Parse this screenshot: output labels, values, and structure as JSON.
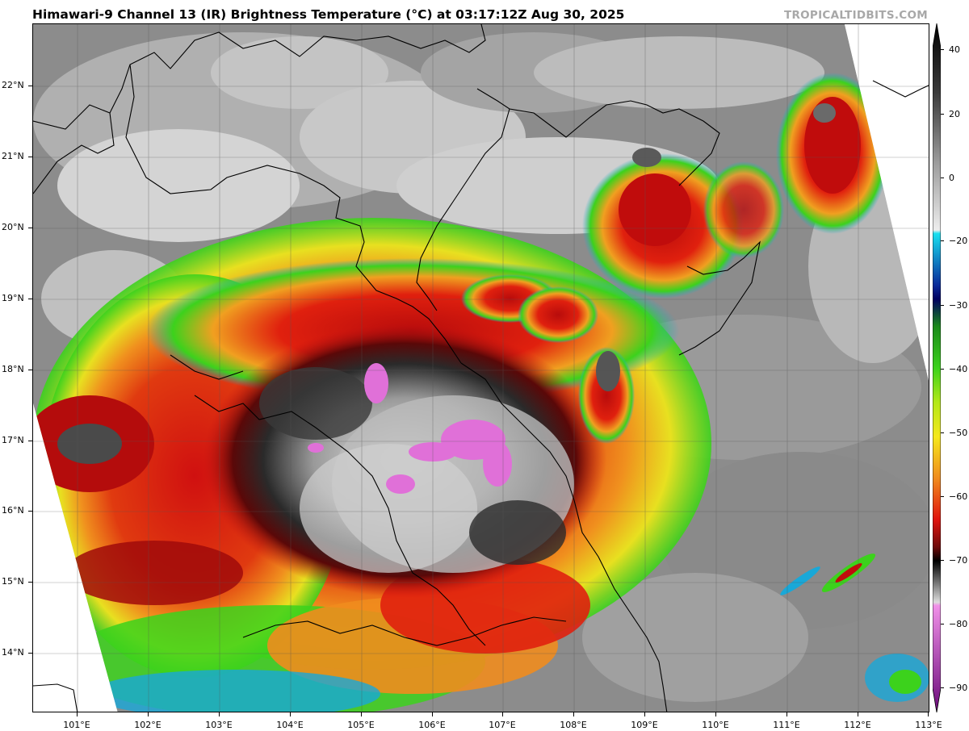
{
  "title": "Himawari-9 Channel 13 (IR) Brightness Temperature (°C) at 03:17:12Z Aug 30, 2025",
  "credit": "TROPICALTIDBITS.COM",
  "lat_labels": [
    "22°N",
    "21°N",
    "20°N",
    "19°N",
    "18°N",
    "17°N",
    "16°N",
    "15°N",
    "14°N"
  ],
  "lon_labels": [
    "101°E",
    "102°E",
    "103°E",
    "104°E",
    "105°E",
    "106°E",
    "107°E",
    "108°E",
    "109°E",
    "110°E",
    "111°E",
    "112°E",
    "113°E"
  ],
  "colorbar": {
    "labels": [
      "40",
      "20",
      "0",
      "−20",
      "−30",
      "−40",
      "−50",
      "−60",
      "−70",
      "−80",
      "−90"
    ],
    "range": [
      -95,
      45
    ]
  },
  "colors": {
    "gray_cloud": "#8f8f8f",
    "light_cloud": "#d8d8d8",
    "cold_cyan": "#19c8d8",
    "cold_green": "#3cd21c",
    "cold_yellow": "#f5e81c",
    "cold_orange": "#f08c1e",
    "cold_red": "#d8140e",
    "cold_darkred": "#6e0a0a",
    "coldest_magenta": "#e070d8"
  }
}
